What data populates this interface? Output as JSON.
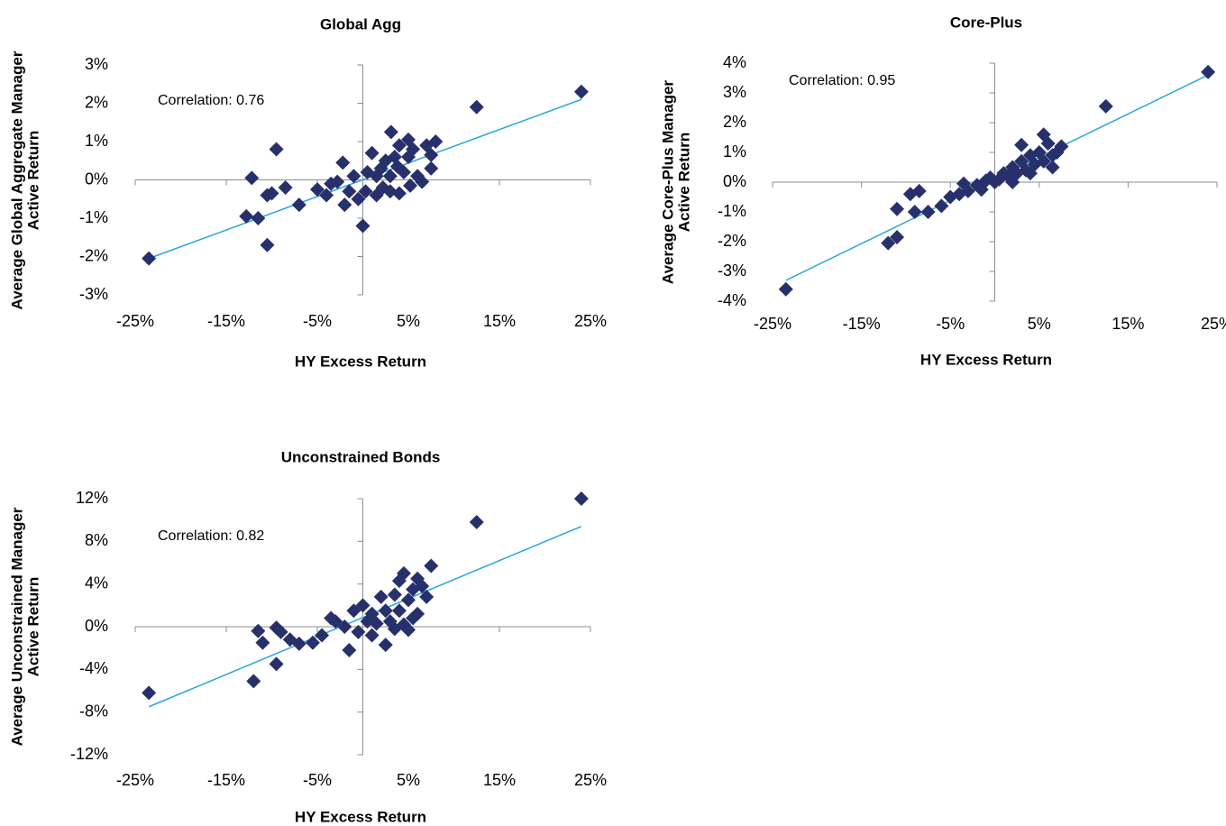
{
  "chart_data": [
    {
      "type": "scatter",
      "title": "Global Agg",
      "xlabel": "HY Excess Return",
      "ylabel": [
        "Average Global Aggregate Manager",
        "Active Return"
      ],
      "annotation": "Correlation: 0.76",
      "color": "#27306b",
      "xlim": [
        -25,
        25
      ],
      "ylim": [
        -3,
        3
      ],
      "xticks": [
        {
          "value": -25,
          "label": "-25%"
        },
        {
          "value": -15,
          "label": "-15%"
        },
        {
          "value": -5,
          "label": "-5%"
        },
        {
          "value": 5,
          "label": "5%"
        },
        {
          "value": 15,
          "label": "15%"
        },
        {
          "value": 25,
          "label": "25%"
        }
      ],
      "yticks": [
        {
          "value": -3,
          "label": "-3%"
        },
        {
          "value": -2,
          "label": "-2%"
        },
        {
          "value": -1,
          "label": "-1%"
        },
        {
          "value": 0,
          "label": "0%"
        },
        {
          "value": 1,
          "label": "1%"
        },
        {
          "value": 2,
          "label": "2%"
        },
        {
          "value": 3,
          "label": "3%"
        }
      ],
      "x": [
        -23.5,
        24,
        12.5,
        -12.2,
        -9.5,
        -10.5,
        -10,
        -12.8,
        -11.5,
        -10.5,
        -8.5,
        -7,
        -5,
        -4,
        -3.5,
        -2.8,
        -2.2,
        -2,
        -1.5,
        -1,
        -0.5,
        0,
        0.3,
        0.5,
        1,
        1.5,
        1.5,
        2,
        2.2,
        2.5,
        3,
        3,
        3.5,
        3.8,
        4,
        4,
        3.1,
        4.5,
        5,
        5.2,
        5.5,
        6,
        6.5,
        5,
        7,
        7.5,
        8,
        7.5
      ],
      "values": [
        -2.05,
        2.3,
        1.9,
        0.05,
        0.8,
        -0.4,
        -0.35,
        -0.95,
        -1,
        -1.7,
        -0.2,
        -0.65,
        -0.25,
        -0.4,
        -0.1,
        -0.05,
        0.45,
        -0.65,
        -0.3,
        0.1,
        -0.5,
        -1.2,
        -0.3,
        0.2,
        0.7,
        0.1,
        -0.4,
        0.3,
        -0.2,
        0.5,
        0.1,
        -0.3,
        0.6,
        0.35,
        -0.35,
        0.9,
        1.25,
        0.2,
        0.6,
        -0.15,
        0.8,
        0.1,
        -0.05,
        1.05,
        0.9,
        0.3,
        1,
        0.65
      ],
      "trendline": {
        "x": [
          -23.5,
          24
        ],
        "values": [
          -2.05,
          2.1
        ],
        "color": "#2aa6dc"
      }
    },
    {
      "type": "scatter",
      "title": "Core-Plus",
      "xlabel": "HY Excess Return",
      "ylabel": [
        "Average Core-Plus Manager",
        "Active Return"
      ],
      "annotation": "Correlation: 0.95",
      "color": "#27306b",
      "xlim": [
        -25,
        25
      ],
      "ylim": [
        -4,
        4
      ],
      "xticks": [
        {
          "value": -25,
          "label": "-25%"
        },
        {
          "value": -15,
          "label": "-15%"
        },
        {
          "value": -5,
          "label": "-5%"
        },
        {
          "value": 5,
          "label": "5%"
        },
        {
          "value": 15,
          "label": "15%"
        },
        {
          "value": 25,
          "label": "25%"
        }
      ],
      "yticks": [
        {
          "value": -4,
          "label": "-4%"
        },
        {
          "value": -3,
          "label": "-3%"
        },
        {
          "value": -2,
          "label": "-2%"
        },
        {
          "value": -1,
          "label": "-1%"
        },
        {
          "value": 0,
          "label": "0%"
        },
        {
          "value": 1,
          "label": "1%"
        },
        {
          "value": 2,
          "label": "2%"
        },
        {
          "value": 3,
          "label": "3%"
        },
        {
          "value": 4,
          "label": "4%"
        }
      ],
      "x": [
        -23.5,
        24,
        12.5,
        -12,
        -11,
        -11,
        -9.5,
        -9,
        -8.5,
        -7.5,
        -6,
        -5,
        -4,
        -3.5,
        -3,
        -2,
        -1.5,
        -1,
        0,
        0.5,
        1,
        1.5,
        2,
        2.5,
        3,
        3,
        3.5,
        4,
        4,
        4.5,
        5,
        5.5,
        5.5,
        6,
        6.5,
        7,
        7.5,
        6.5,
        2,
        -0.5
      ],
      "values": [
        -3.6,
        3.7,
        2.55,
        -2.05,
        -1.85,
        -0.9,
        -0.4,
        -1,
        -0.3,
        -1,
        -0.8,
        -0.5,
        -0.4,
        -0.05,
        -0.3,
        -0.1,
        -0.25,
        0.05,
        0,
        0.1,
        0.3,
        0.2,
        0.5,
        0.3,
        0.7,
        1.25,
        0.4,
        0.9,
        0.3,
        0.6,
        1,
        1.6,
        0.7,
        1.3,
        0.5,
        1,
        1.2,
        0.9,
        0,
        0.15
      ],
      "trendline": {
        "x": [
          -23.5,
          24
        ],
        "values": [
          -3.3,
          3.6
        ],
        "color": "#2aa6dc"
      }
    },
    {
      "type": "scatter",
      "title": "Unconstrained Bonds",
      "xlabel": "HY Excess Return",
      "ylabel": [
        "Average Unconstrained Manager",
        "Active Return"
      ],
      "annotation": "Correlation: 0.82",
      "color": "#27306b",
      "xlim": [
        -25,
        25
      ],
      "ylim": [
        -12,
        12
      ],
      "xticks": [
        {
          "value": -25,
          "label": "-25%"
        },
        {
          "value": -15,
          "label": "-15%"
        },
        {
          "value": -5,
          "label": "-5%"
        },
        {
          "value": 5,
          "label": "5%"
        },
        {
          "value": 15,
          "label": "15%"
        },
        {
          "value": 25,
          "label": "25%"
        }
      ],
      "yticks": [
        {
          "value": -12,
          "label": "-12%"
        },
        {
          "value": -8,
          "label": "-8%"
        },
        {
          "value": -4,
          "label": "-4%"
        },
        {
          "value": 0,
          "label": "0%"
        },
        {
          "value": 4,
          "label": "4%"
        },
        {
          "value": 8,
          "label": "8%"
        },
        {
          "value": 12,
          "label": "12%"
        }
      ],
      "x": [
        -23.5,
        24,
        12.5,
        -12,
        -9.5,
        -11.5,
        -11,
        -9.5,
        -9,
        -8,
        -7,
        -5.5,
        -4.5,
        -3.5,
        -3,
        -2,
        -1.5,
        -1,
        -0.5,
        0,
        0.5,
        1,
        1,
        1.5,
        2,
        2.5,
        2.5,
        3,
        3.5,
        3.5,
        4,
        4,
        4.5,
        4.5,
        5,
        5.5,
        5.5,
        6,
        6,
        6.5,
        7,
        7.5,
        5
      ],
      "values": [
        -6.2,
        12,
        9.8,
        -5.1,
        -3.5,
        -0.4,
        -1.5,
        -0.1,
        -0.5,
        -1.2,
        -1.6,
        -1.5,
        -0.8,
        0.8,
        0.5,
        0,
        -2.2,
        1.5,
        -0.5,
        2,
        0.5,
        -0.8,
        1.2,
        0.3,
        2.8,
        -1.7,
        1.5,
        0.5,
        3,
        -0.2,
        4.3,
        1.5,
        5,
        0.2,
        2.5,
        0.8,
        3.5,
        4.5,
        1.2,
        3.8,
        2.8,
        5.7,
        -0.3
      ],
      "trendline": {
        "x": [
          -23.5,
          24
        ],
        "values": [
          -7.5,
          9.4
        ],
        "color": "#2aa6dc"
      }
    }
  ]
}
